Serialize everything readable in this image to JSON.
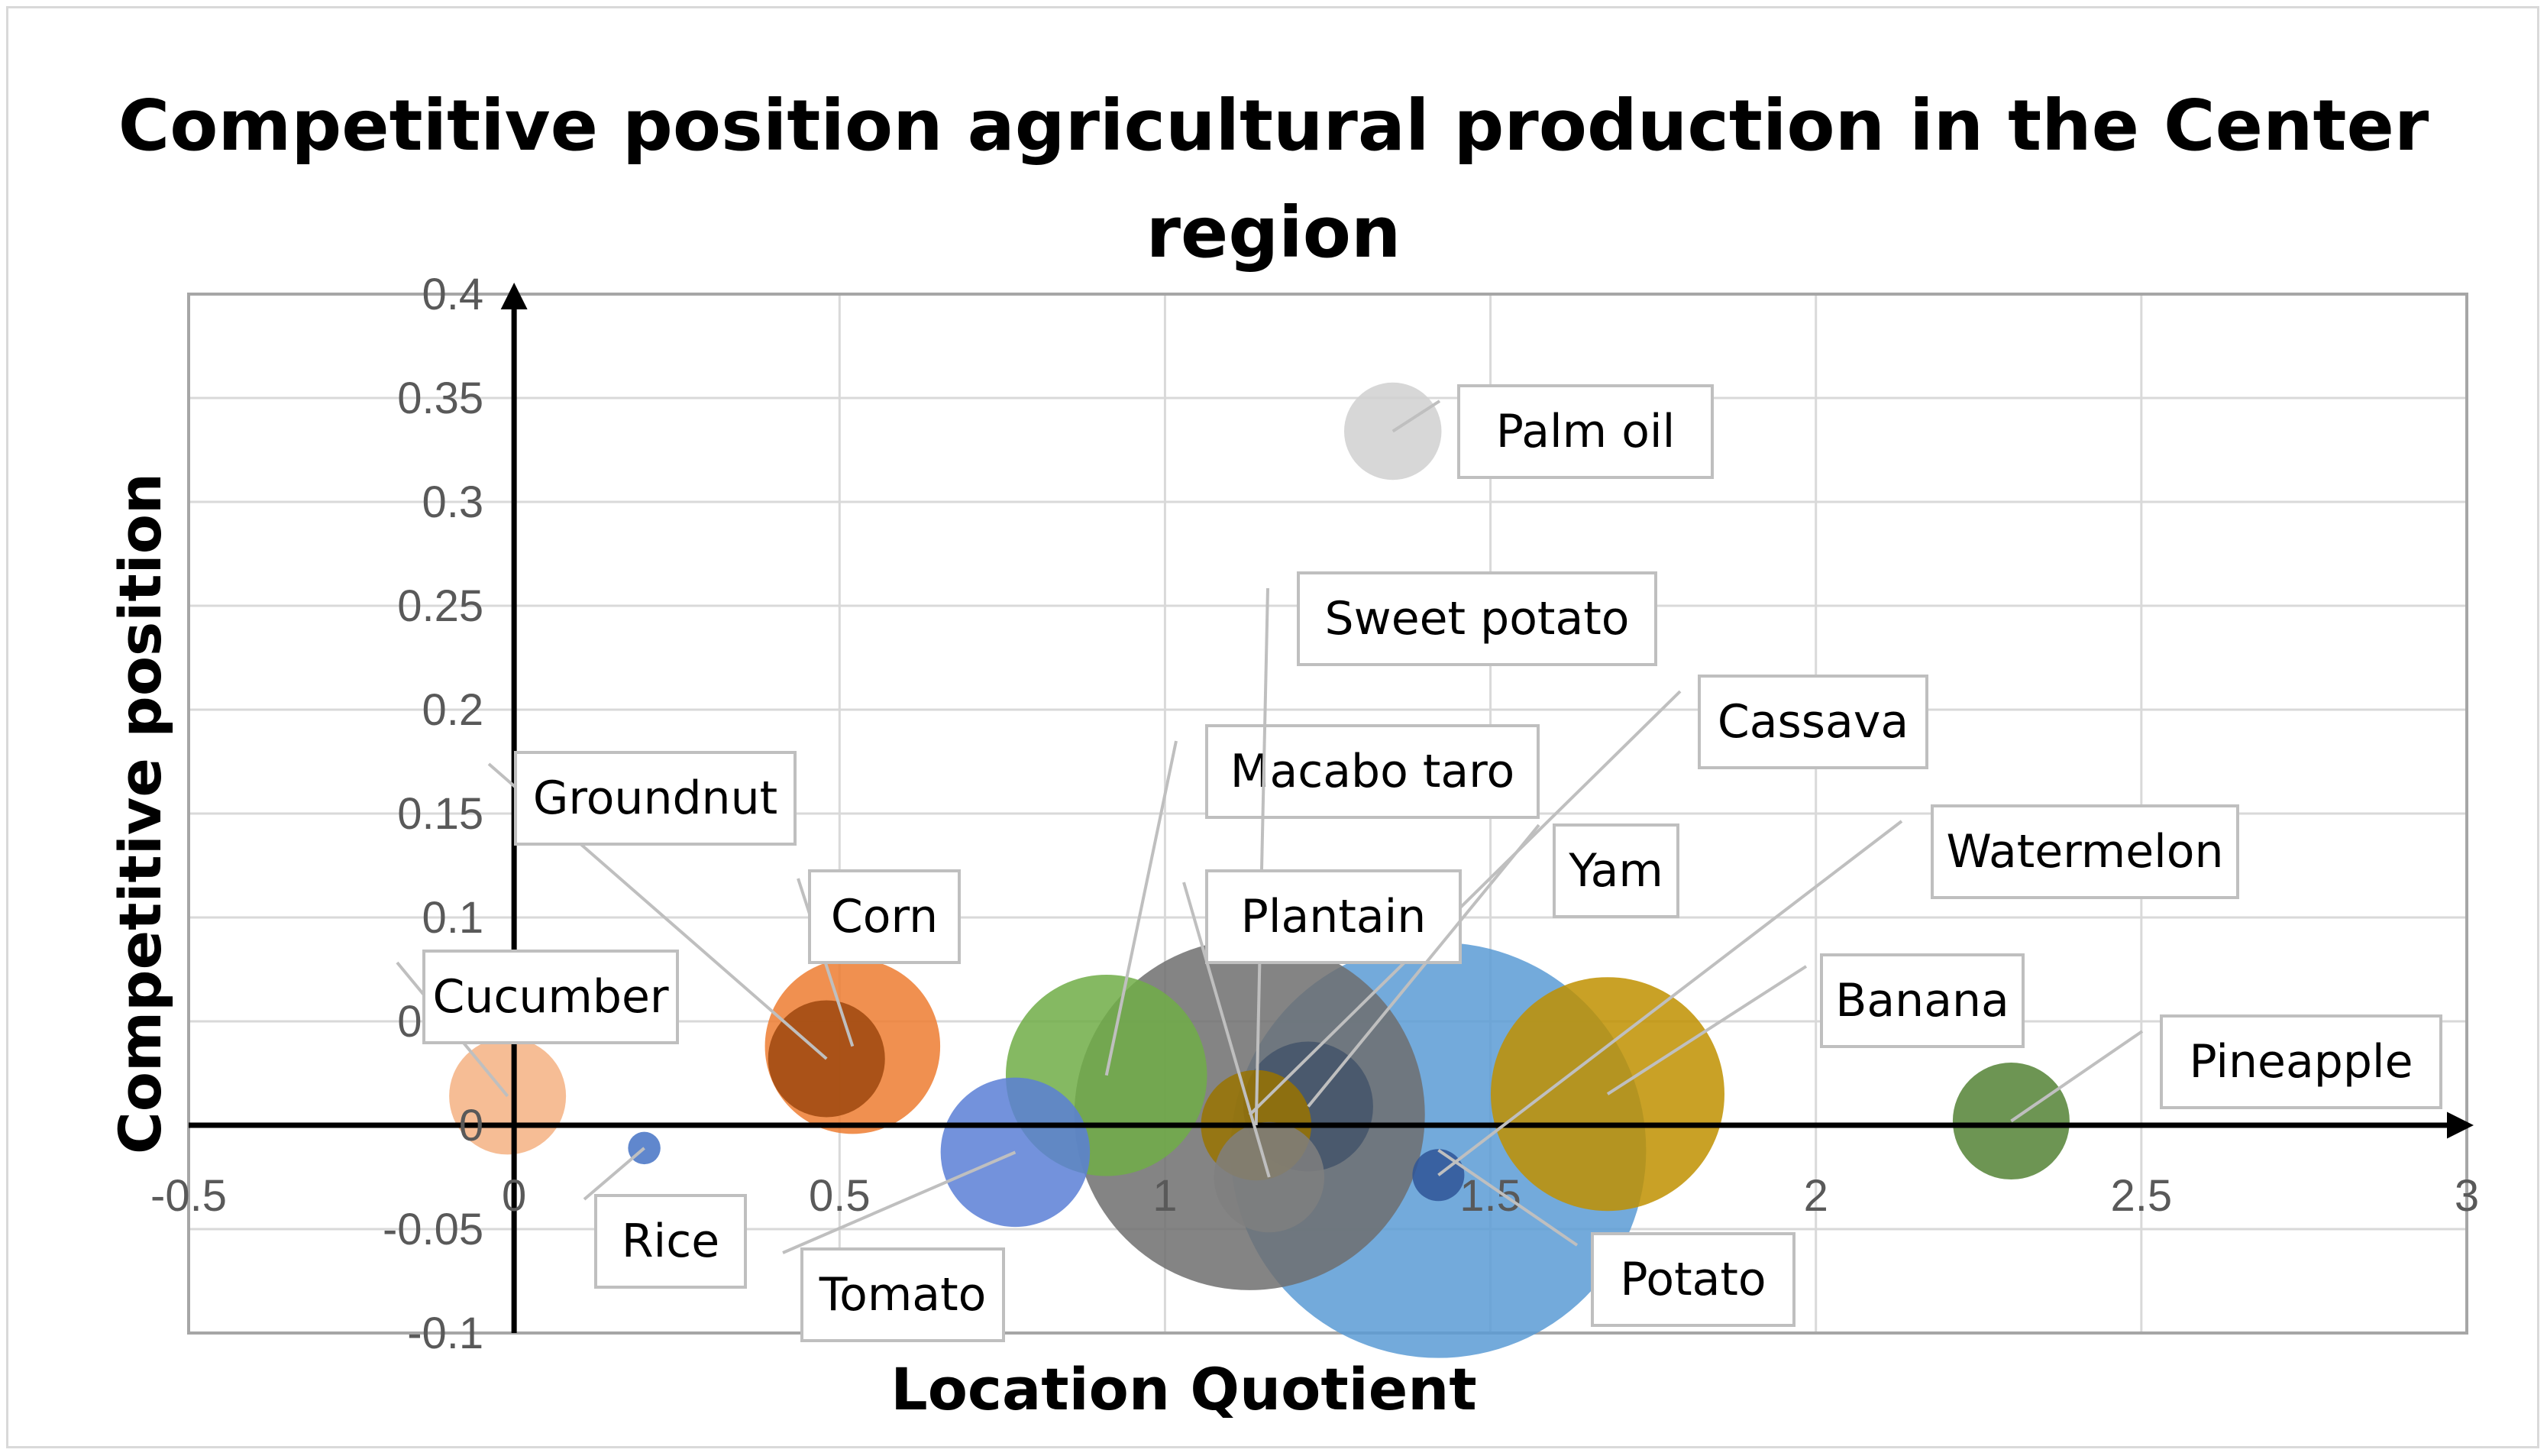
{
  "chart_data": {
    "type": "bubble",
    "title": "Competitive position agricultural production in the Center region",
    "xlabel": "Location Quotient",
    "ylabel": "Competitive position",
    "xlim": [
      -0.5,
      3
    ],
    "ylim": [
      -0.1,
      0.4
    ],
    "x_ticks": [
      "-0.5",
      "0",
      "0.5",
      "1",
      "1.5",
      "2",
      "2.5",
      "3"
    ],
    "y_ticks": [
      "-0.1",
      "-0.05",
      "0",
      "0.05",
      "0.1",
      "0.15",
      "0.2",
      "0.25",
      "0.3",
      "0.35",
      "0.4"
    ],
    "grid": true,
    "legend": "none",
    "points": [
      {
        "label": "Cucumber",
        "x": -0.01,
        "y": 0.014,
        "size": 0.9,
        "color": "#F4B183"
      },
      {
        "label": "Rice",
        "x": 0.2,
        "y": -0.011,
        "size": 0.25,
        "color": "#4472C4"
      },
      {
        "label": "Groundnut",
        "x": 0.48,
        "y": 0.032,
        "size": 0.9,
        "color": "#9E480E"
      },
      {
        "label": "Corn",
        "x": 0.52,
        "y": 0.038,
        "size": 1.35,
        "color": "#ED7D31"
      },
      {
        "label": "Tomato",
        "x": 0.77,
        "y": -0.013,
        "size": 1.15,
        "color": "#5B7FD6"
      },
      {
        "label": "Macabo taro",
        "x": 0.91,
        "y": 0.024,
        "size": 1.55,
        "color": "#70AD47"
      },
      {
        "label": "Cassava",
        "x": 1.13,
        "y": 0.005,
        "size": 2.7,
        "color": "#6E6E6E"
      },
      {
        "label": "Sweet potato",
        "x": 1.14,
        "y": 0.0,
        "size": 0.85,
        "color": "#997300"
      },
      {
        "label": "Plantain",
        "x": 1.16,
        "y": -0.025,
        "size": 0.85,
        "color": "#7F7F7F"
      },
      {
        "label": "Yam",
        "x": 1.22,
        "y": 0.009,
        "size": 1.0,
        "color": "#44546A"
      },
      {
        "label": "Palm oil",
        "x": 1.35,
        "y": 0.334,
        "size": 0.75,
        "color": "#D0D0D0"
      },
      {
        "label": "Potato",
        "x": 1.42,
        "y": -0.012,
        "size": 3.2,
        "color": "#5B9BD5"
      },
      {
        "label": "Watermelon",
        "x": 1.42,
        "y": -0.024,
        "size": 0.4,
        "color": "#2F5597"
      },
      {
        "label": "Banana",
        "x": 1.68,
        "y": 0.015,
        "size": 1.8,
        "color": "#BF9000"
      },
      {
        "label": "Pineapple",
        "x": 2.3,
        "y": 0.002,
        "size": 0.9,
        "color": "#548235"
      }
    ]
  },
  "colors": {
    "grid": "#d9d9d9",
    "axis": "#000000",
    "leader": "#bfbfbf",
    "label_border": "#bfbfbf"
  }
}
